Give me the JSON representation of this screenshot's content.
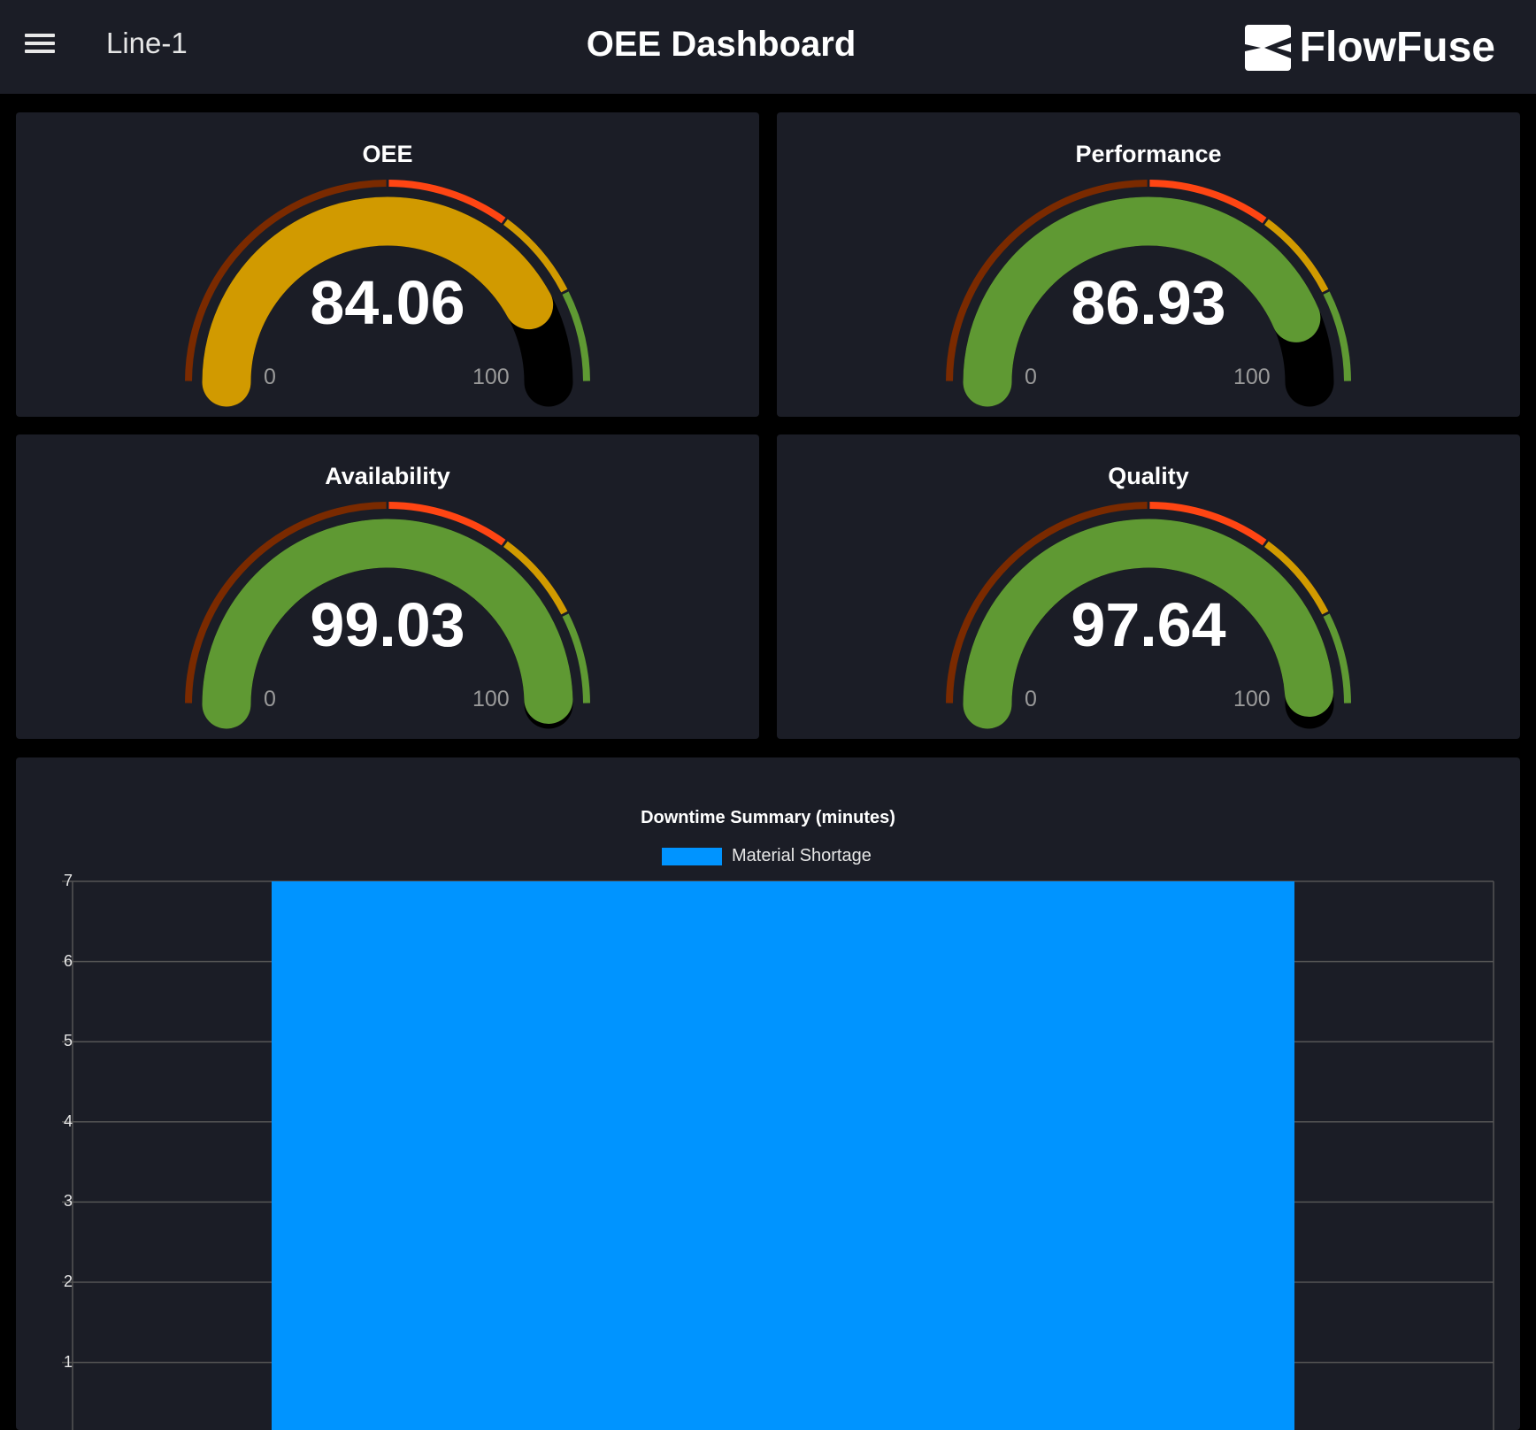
{
  "header": {
    "menu_icon": "hamburger-menu-icon",
    "line": "Line-1",
    "title": "OEE Dashboard",
    "brand": "FlowFuse"
  },
  "gauges": [
    {
      "title": "OEE",
      "value": "84.06",
      "min": "0",
      "max": "100",
      "fill_color": "#d19a00"
    },
    {
      "title": "Performance",
      "value": "86.93",
      "min": "0",
      "max": "100",
      "fill_color": "#5f9933"
    },
    {
      "title": "Availability",
      "value": "99.03",
      "min": "0",
      "max": "100",
      "fill_color": "#5f9933"
    },
    {
      "title": "Quality",
      "value": "97.64",
      "min": "0",
      "max": "100",
      "fill_color": "#5f9933"
    }
  ],
  "gauge_segments": [
    {
      "from": 0,
      "to": 50,
      "color": "#7a2a00"
    },
    {
      "from": 50,
      "to": 70,
      "color": "#ff4513"
    },
    {
      "from": 70,
      "to": 85,
      "color": "#d19a00"
    },
    {
      "from": 85,
      "to": 100,
      "color": "#5f9933"
    }
  ],
  "chart_data": {
    "type": "bar",
    "title": "Downtime Summary (minutes)",
    "series": [
      {
        "name": "Material Shortage",
        "values": [
          7
        ],
        "color": "#0094ff"
      }
    ],
    "yticks": [
      "1",
      "2",
      "3",
      "4",
      "5",
      "6",
      "7"
    ],
    "ylim": [
      0,
      7
    ],
    "grid": true,
    "legend": "top"
  }
}
